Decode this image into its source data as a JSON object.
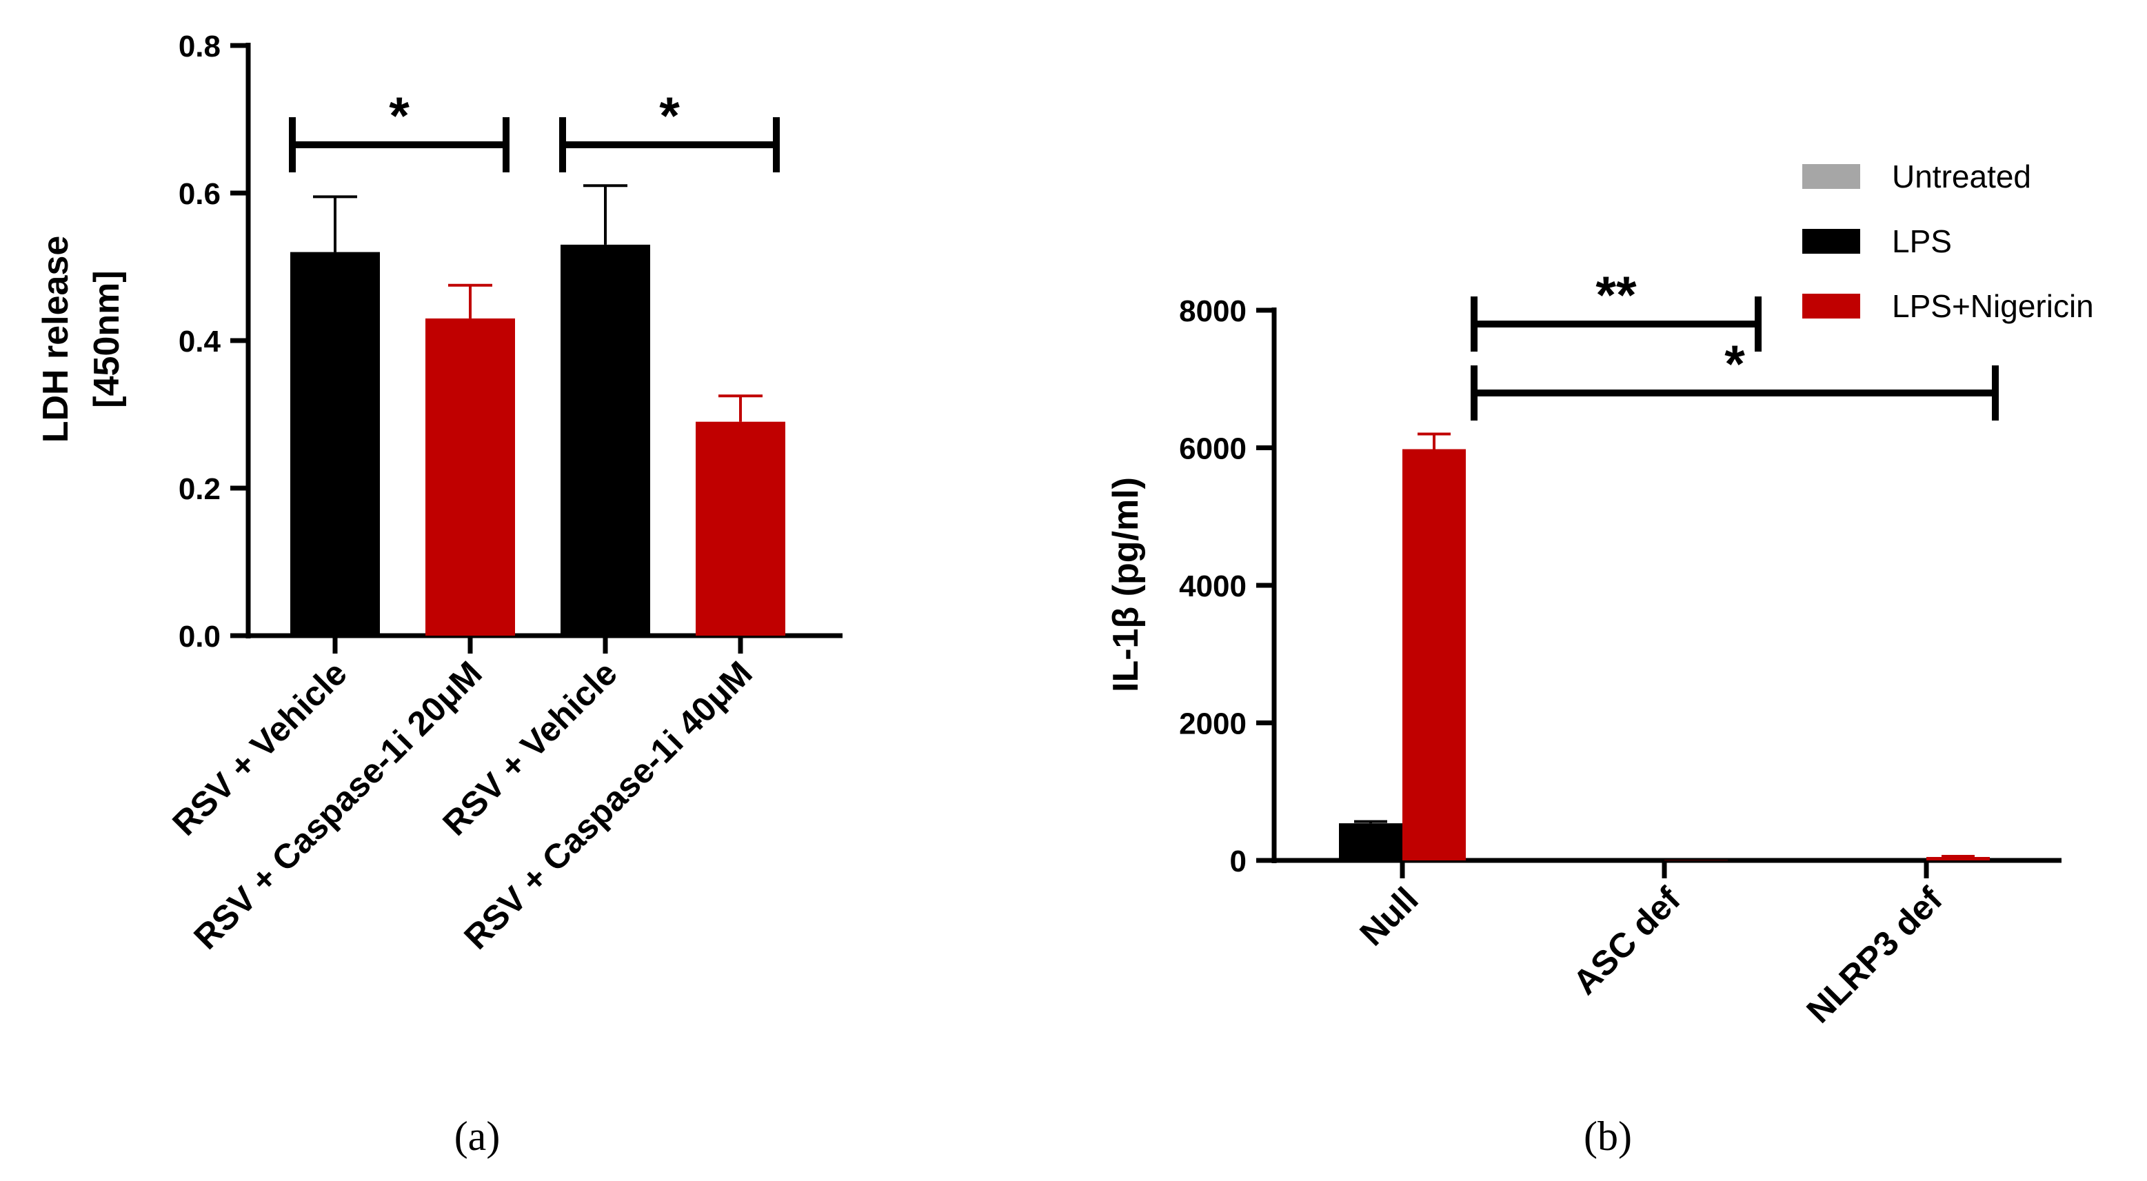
{
  "chart_data": [
    {
      "type": "bar",
      "panel_label": "(a)",
      "ylabel_lines": [
        "LDH release",
        "[450nm]"
      ],
      "ylim": [
        0,
        0.8
      ],
      "yticks": [
        0.0,
        0.2,
        0.4,
        0.6,
        0.8
      ],
      "ytick_labels": [
        "0.0",
        "0.2",
        "0.4",
        "0.6",
        "0.8"
      ],
      "categories": [
        "RSV + Vehicle",
        "RSV + Caspase-1i 20μM",
        "RSV + Vehicle",
        "RSV + Caspase-1i 40μM"
      ],
      "values": [
        0.52,
        0.43,
        0.53,
        0.29
      ],
      "errors": [
        0.075,
        0.045,
        0.08,
        0.035
      ],
      "bar_colors": [
        "#000000",
        "#c00000",
        "#000000",
        "#c00000"
      ],
      "significance": [
        {
          "from": 0,
          "to": 1,
          "label": "*"
        },
        {
          "from": 2,
          "to": 3,
          "label": "*"
        }
      ]
    },
    {
      "type": "bar",
      "panel_label": "(b)",
      "ylabel": "IL-1β (pg/ml)",
      "ylim": [
        0,
        8000
      ],
      "yticks": [
        0,
        2000,
        4000,
        6000,
        8000
      ],
      "ytick_labels": [
        "0",
        "2000",
        "4000",
        "6000",
        "8000"
      ],
      "categories": [
        "Null",
        "ASC def",
        "NLRP3 def"
      ],
      "series": [
        {
          "name": "Untreated",
          "color": "#a6a6a6",
          "values": [
            0,
            0,
            0
          ],
          "errors": [
            0,
            0,
            0
          ]
        },
        {
          "name": "LPS",
          "color": "#000000",
          "values": [
            540,
            0,
            0
          ],
          "errors": [
            25,
            0,
            0
          ]
        },
        {
          "name": "LPS+Nigericin",
          "color": "#c00000",
          "values": [
            5980,
            5,
            50
          ],
          "errors": [
            220,
            0,
            10
          ]
        }
      ],
      "significance": [
        {
          "from_category": 0,
          "to_category": 1,
          "label": "**"
        },
        {
          "from_category": 0,
          "to_category": 2,
          "label": "*"
        }
      ]
    }
  ]
}
